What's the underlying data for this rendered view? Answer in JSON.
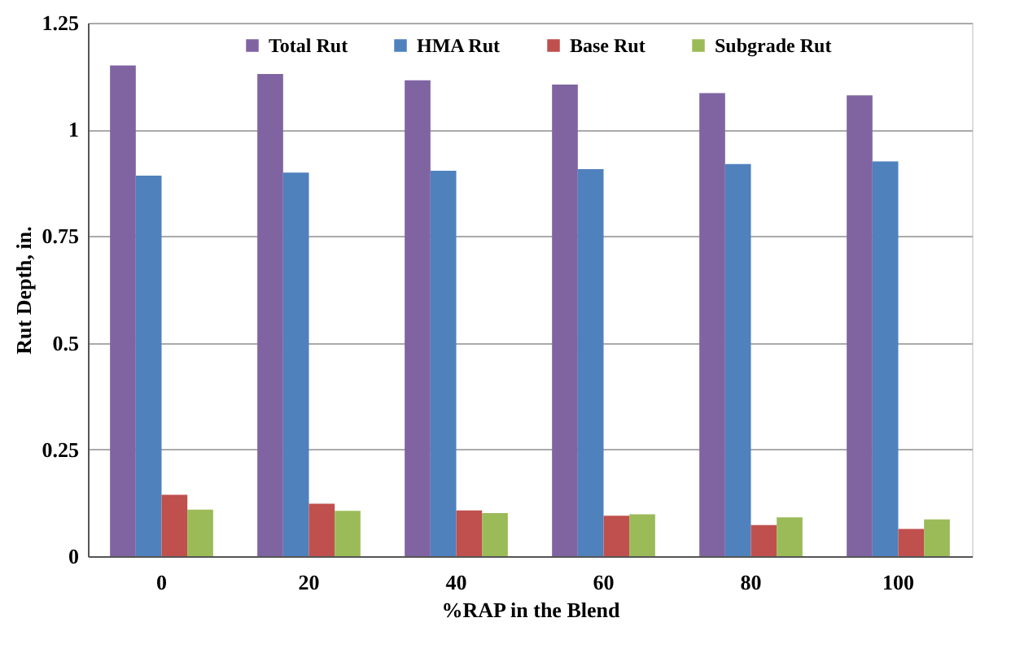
{
  "chart_data": {
    "type": "bar",
    "xlabel": "%RAP in the Blend",
    "ylabel": "Rut Depth, in.",
    "categories": [
      "0",
      "20",
      "40",
      "60",
      "80",
      "100"
    ],
    "series": [
      {
        "name": "Total Rut",
        "color": "#8064a2",
        "values": [
          1.15,
          1.13,
          1.115,
          1.105,
          1.085,
          1.08
        ]
      },
      {
        "name": "HMA Rut",
        "color": "#4f81bd",
        "values": [
          0.892,
          0.899,
          0.903,
          0.907,
          0.919,
          0.925
        ]
      },
      {
        "name": "Base Rut",
        "color": "#c0504d",
        "values": [
          0.144,
          0.123,
          0.107,
          0.095,
          0.073,
          0.064
        ]
      },
      {
        "name": "Subgrade Rut",
        "color": "#9bbb59",
        "values": [
          0.109,
          0.106,
          0.101,
          0.098,
          0.091,
          0.086
        ]
      }
    ],
    "ylim": [
      0,
      1.25
    ],
    "yticks": [
      0,
      0.25,
      0.5,
      0.75,
      1,
      1.25
    ],
    "grid": "y",
    "legend": "top"
  }
}
